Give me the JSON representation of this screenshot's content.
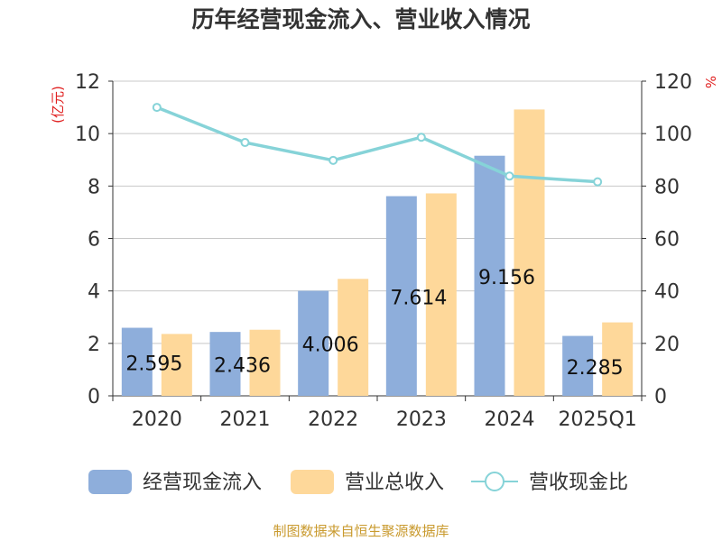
{
  "chart_data": {
    "type": "bar",
    "title": "历年经营现金流入、营业收入情况",
    "categories": [
      "2020",
      "2021",
      "2022",
      "2023",
      "2024",
      "2025Q1"
    ],
    "ylabel_left": "(亿元)",
    "ylabel_right": "%",
    "ylim_left": [
      0,
      12
    ],
    "yticks_left": [
      0,
      2,
      4,
      6,
      8,
      10,
      12
    ],
    "ylim_right": [
      0,
      120
    ],
    "yticks_right": [
      0,
      20,
      40,
      60,
      80,
      100,
      120
    ],
    "grid": true,
    "legend_position": "bottom",
    "series": [
      {
        "name": "经营现金流入",
        "kind": "bar",
        "axis": "left",
        "color": "#8eaedb",
        "values": [
          2.595,
          2.436,
          4.006,
          7.614,
          9.156,
          2.285
        ],
        "labels": [
          "2.595",
          "2.436",
          "4.006",
          "7.614",
          "9.156",
          "2.285"
        ]
      },
      {
        "name": "营业总收入",
        "kind": "bar",
        "axis": "left",
        "color": "#fed89a",
        "values": [
          2.36,
          2.52,
          4.46,
          7.72,
          10.92,
          2.8
        ]
      },
      {
        "name": "营收现金比",
        "kind": "line",
        "axis": "right",
        "color": "#86d3d8",
        "values": [
          110.0,
          96.6,
          89.8,
          98.6,
          83.8,
          81.6
        ]
      }
    ]
  },
  "source": "制图数据来自恒生聚源数据库"
}
